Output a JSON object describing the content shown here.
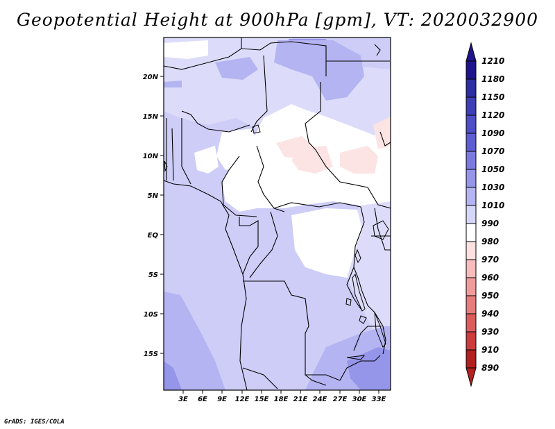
{
  "title": "Geopotential Height at 900hPa [gpm], VT: 2020032900",
  "credit": "GrADS: IGES/COLA",
  "map": {
    "lat_labels": [
      "20N",
      "15N",
      "10N",
      "5N",
      "EQ",
      "5S",
      "10S",
      "15S"
    ],
    "lon_labels": [
      "3E",
      "6E",
      "9E",
      "12E",
      "15E",
      "18E",
      "21E",
      "24E",
      "27E",
      "30E",
      "33E"
    ]
  },
  "colorbar": {
    "levels": [
      "1210",
      "1180",
      "1150",
      "1120",
      "1090",
      "1070",
      "1050",
      "1030",
      "1010",
      "990",
      "980",
      "970",
      "960",
      "950",
      "940",
      "930",
      "910",
      "890"
    ],
    "colors": [
      "#20148c",
      "#2e2ea4",
      "#3e3eb6",
      "#4e4ec6",
      "#5e5ed4",
      "#7a7ae0",
      "#9595ea",
      "#b4b4f2",
      "#d6d6f8",
      "#ffffff",
      "#fde0e0",
      "#f8bcbc",
      "#f09c9c",
      "#e67c7c",
      "#dc5c5c",
      "#cc3c3c",
      "#b22020"
    ],
    "tip_top_color": "#20148c",
    "tip_bottom_color": "#b22020"
  },
  "colors": {
    "base_fill": "#cdcdf7",
    "light_fill": "#dcdcfa",
    "mid_fill": "#b4b4f2",
    "dark_fill": "#9595ea",
    "low_fill": "#ffffff",
    "pink_fill": "#fde4e4",
    "border": "#000000"
  }
}
